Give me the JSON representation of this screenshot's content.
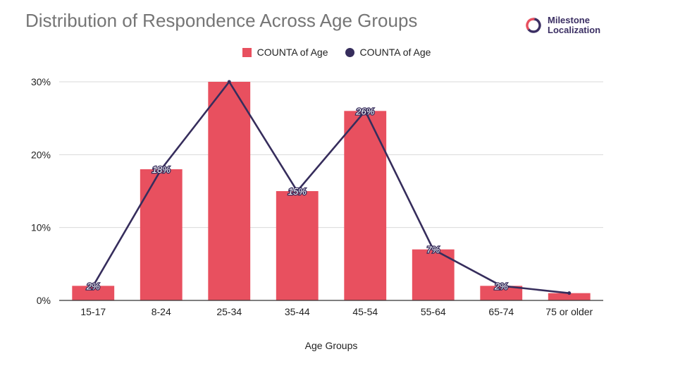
{
  "logo": {
    "line1": "Milestone",
    "line2": "Localization"
  },
  "colors": {
    "bar": "#e8505f",
    "line": "#362d5c",
    "title": "#757575",
    "grid": "#d9d9d9"
  },
  "chart_data": {
    "type": "bar",
    "title": "Distribution of Respondence Across Age Groups",
    "xlabel": "Age Groups",
    "ylabel": "",
    "categories": [
      "15-17",
      "8-24",
      "25-34",
      "35-44",
      "45-54",
      "55-64",
      "65-74",
      "75 or older"
    ],
    "series": [
      {
        "name": "COUNTA of Age",
        "type": "bar",
        "values": [
          2,
          18,
          30,
          15,
          26,
          7,
          2,
          1
        ]
      },
      {
        "name": "COUNTA of Age",
        "type": "line",
        "values": [
          2,
          18,
          30,
          15,
          26,
          7,
          2,
          1
        ]
      }
    ],
    "data_labels": [
      "2%",
      "18%",
      "",
      "15%",
      "26%",
      "7%",
      "2%",
      ""
    ],
    "yticks": [
      "0%",
      "10%",
      "20%",
      "30%"
    ],
    "ytick_values": [
      0,
      10,
      20,
      30
    ],
    "ylim": [
      0,
      30
    ],
    "grid": true,
    "legend_position": "top"
  }
}
